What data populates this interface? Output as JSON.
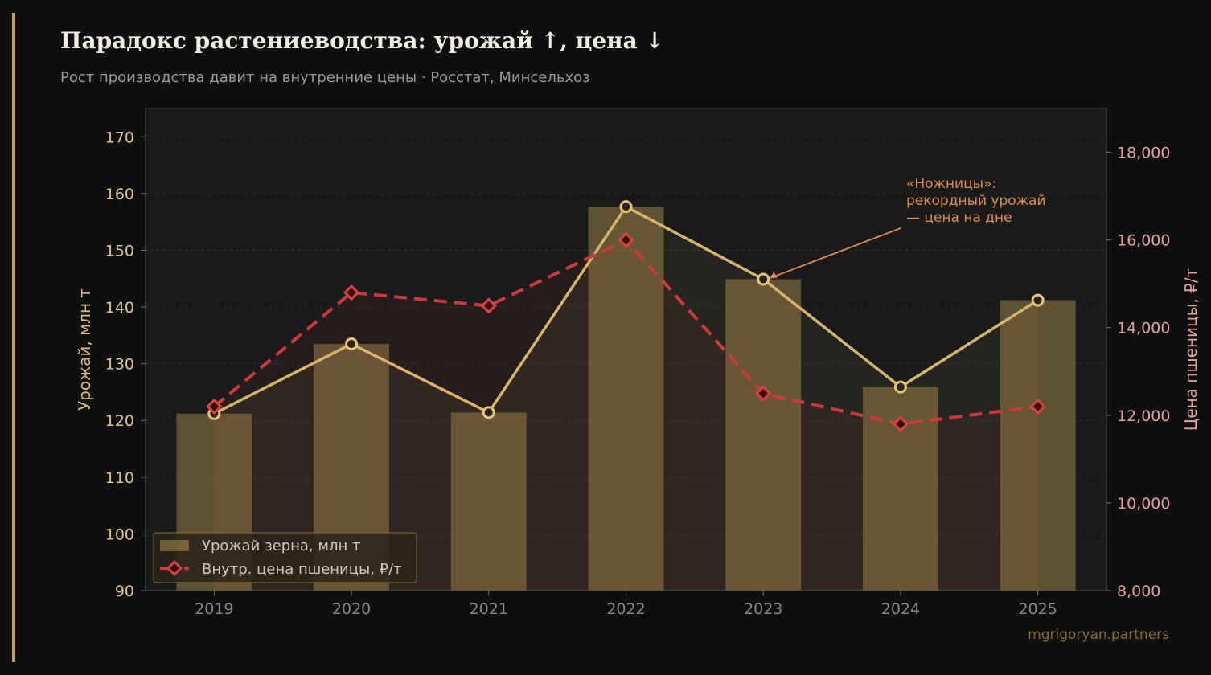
{
  "header": {
    "title": "Парадокс растениеводства: урожай ↑, цена ↓",
    "subtitle": "Рост производства давит на внутренние цены · Росстат, Минсельхоз"
  },
  "watermark": "mgrigoryan.partners",
  "colors": {
    "background": "#0f0f0f",
    "plot_background": "#1a1a1a",
    "harvest": "#c9a55c",
    "price": "#cc3b3b",
    "annotation": "#e08a4e"
  },
  "chart_data": {
    "type": "bar",
    "categories": [
      "2019",
      "2020",
      "2021",
      "2022",
      "2023",
      "2024",
      "2025"
    ],
    "series": [
      {
        "name": "Урожай зерна, млн т",
        "kind": "bar",
        "axis": "left",
        "values": [
          121.2,
          133.5,
          121.4,
          157.7,
          144.9,
          125.9,
          141.2
        ]
      },
      {
        "name": "",
        "kind": "line",
        "axis": "left",
        "values": [
          121.2,
          133.5,
          121.4,
          157.7,
          144.9,
          125.9,
          141.2
        ]
      },
      {
        "name": "Внутр. цена пшеницы, ₽/т",
        "kind": "line-dashed",
        "axis": "right",
        "values": [
          12200,
          14800,
          14500,
          16000,
          12500,
          11800,
          12200
        ]
      }
    ],
    "ylabel_left": "Урожай, млн т",
    "ylabel_right": "Цена пшеницы, ₽/т",
    "ylim_left": [
      90,
      175
    ],
    "ylim_right": [
      8000,
      19000
    ],
    "yticks_left": [
      "90",
      "100",
      "110",
      "120",
      "130",
      "140",
      "150",
      "160",
      "170"
    ],
    "yticks_right": [
      "8,000",
      "10,000",
      "12,000",
      "14,000",
      "16,000",
      "18,000"
    ],
    "grid": true,
    "legend_position": "bottom-left",
    "annotation": {
      "lines": [
        "«Ножницы»:",
        "рекордный урожай",
        "— цена на дне"
      ],
      "points_to": "2023"
    }
  }
}
